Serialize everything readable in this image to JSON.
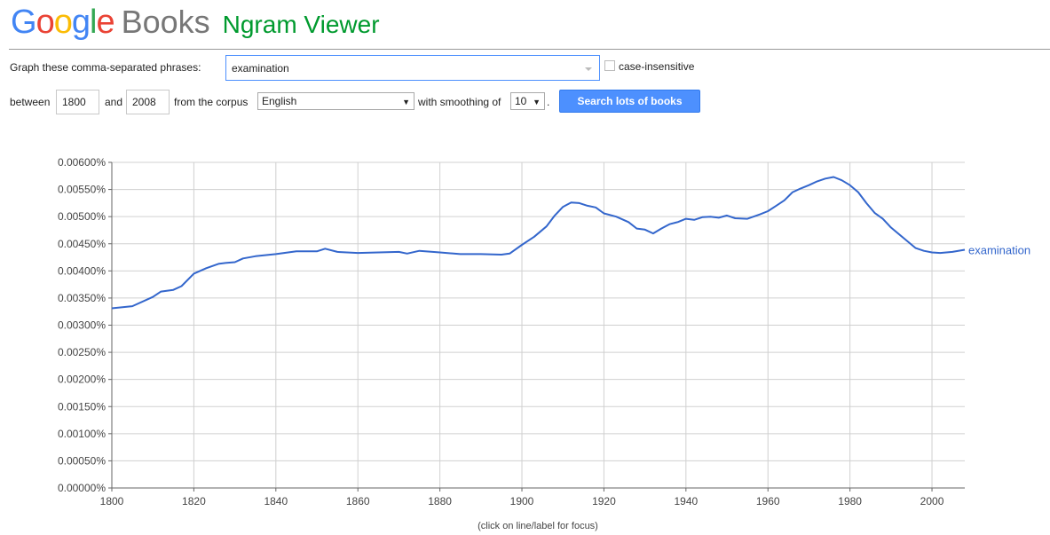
{
  "logo": {
    "google": "Google",
    "books": "Books",
    "app": "Ngram Viewer"
  },
  "form": {
    "phrases_label": "Graph these comma-separated phrases:",
    "phrases_value": "examination",
    "case_label": "case-insensitive",
    "between_label": "between",
    "start_year": "1800",
    "and_label": "and",
    "end_year": "2008",
    "corpus_label": "from the corpus",
    "corpus_value": "English",
    "smoothing_label": "with smoothing of",
    "smoothing_value": "10",
    "period": ".",
    "search_button": "Search lots of books"
  },
  "chart_note": "(click on line/label for focus)",
  "colors": {
    "line": "#3366cc",
    "button": "#4d90fe",
    "ngram": "#009a2e"
  },
  "chart_data": {
    "type": "line",
    "xlabel": "",
    "ylabel": "",
    "xlim": [
      1800,
      2008
    ],
    "ylim": [
      0,
      0.006
    ],
    "xticks": [
      1800,
      1820,
      1840,
      1860,
      1880,
      1900,
      1920,
      1940,
      1960,
      1980,
      2000
    ],
    "yticks": [
      "0.00000%",
      "0.00050%",
      "0.00100%",
      "0.00150%",
      "0.00200%",
      "0.00250%",
      "0.00300%",
      "0.00350%",
      "0.00400%",
      "0.00450%",
      "0.00500%",
      "0.00550%",
      "0.00600%"
    ],
    "grid": true,
    "series": [
      {
        "name": "examination",
        "x": [
          1800,
          1805,
          1810,
          1812,
          1815,
          1817,
          1820,
          1823,
          1826,
          1828,
          1830,
          1832,
          1835,
          1840,
          1845,
          1850,
          1852,
          1855,
          1860,
          1865,
          1870,
          1872,
          1875,
          1880,
          1885,
          1890,
          1895,
          1897,
          1900,
          1903,
          1906,
          1908,
          1910,
          1912,
          1914,
          1916,
          1918,
          1920,
          1923,
          1926,
          1928,
          1930,
          1932,
          1934,
          1936,
          1938,
          1940,
          1942,
          1944,
          1946,
          1948,
          1950,
          1952,
          1955,
          1958,
          1960,
          1962,
          1964,
          1966,
          1968,
          1970,
          1972,
          1974,
          1976,
          1978,
          1980,
          1982,
          1984,
          1986,
          1988,
          1990,
          1993,
          1996,
          1998,
          2000,
          2002,
          2005,
          2008
        ],
        "values": [
          0.00331,
          0.00335,
          0.00352,
          0.00362,
          0.00365,
          0.00372,
          0.00395,
          0.00405,
          0.00413,
          0.00415,
          0.00416,
          0.00423,
          0.00427,
          0.00431,
          0.00436,
          0.00436,
          0.00441,
          0.00435,
          0.00433,
          0.00434,
          0.00435,
          0.00432,
          0.00437,
          0.00434,
          0.00431,
          0.00431,
          0.0043,
          0.00432,
          0.00448,
          0.00463,
          0.00482,
          0.00502,
          0.00518,
          0.00526,
          0.00525,
          0.0052,
          0.00517,
          0.00506,
          0.005,
          0.0049,
          0.00478,
          0.00476,
          0.00469,
          0.00478,
          0.00486,
          0.0049,
          0.00496,
          0.00494,
          0.00499,
          0.005,
          0.00498,
          0.00502,
          0.00497,
          0.00496,
          0.00504,
          0.0051,
          0.0052,
          0.0053,
          0.00545,
          0.00552,
          0.00558,
          0.00565,
          0.0057,
          0.00573,
          0.00567,
          0.00558,
          0.00545,
          0.00525,
          0.00507,
          0.00496,
          0.0048,
          0.00461,
          0.00442,
          0.00437,
          0.00434,
          0.00433,
          0.00435,
          0.00439
        ]
      }
    ]
  }
}
